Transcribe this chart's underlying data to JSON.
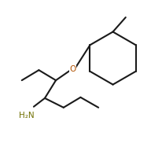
{
  "background": "#ffffff",
  "line_color": "#1a1a1a",
  "line_width": 1.5,
  "O_label": "O",
  "NH2_label": "H₂N",
  "O_color": "#b05000",
  "NH2_color": "#707000",
  "font_size_O": 7.5,
  "font_size_NH2": 7.5
}
